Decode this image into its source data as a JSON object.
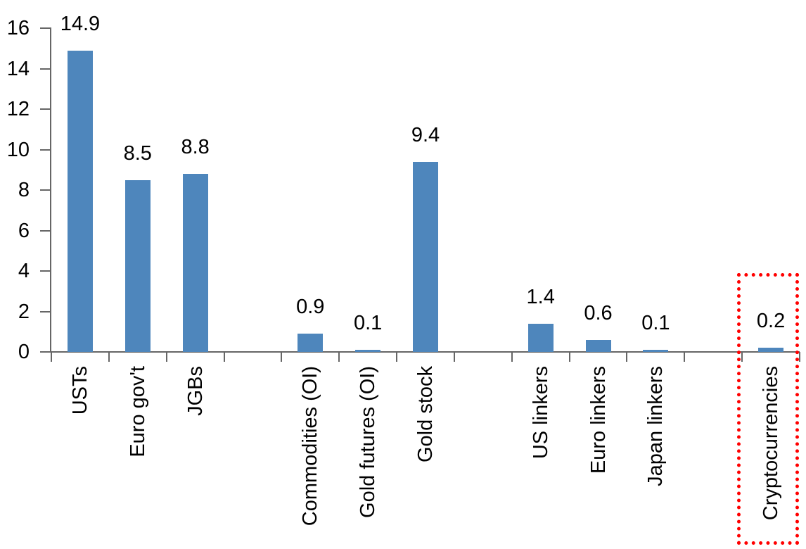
{
  "chart_data": {
    "type": "bar",
    "title": "",
    "xlabel": "",
    "ylabel": "",
    "categories": [
      "USTs",
      "Euro gov't",
      "JGBs",
      "",
      "Commodities (OI)",
      "Gold futures (OI)",
      "Gold stock",
      "",
      "US linkers",
      "Euro linkers",
      "Japan linkers",
      "",
      "Cryptocurrencies"
    ],
    "values": [
      14.9,
      8.5,
      8.8,
      null,
      0.9,
      0.1,
      9.4,
      null,
      1.4,
      0.6,
      0.1,
      null,
      0.2
    ],
    "value_labels": [
      "14.9",
      "8.5",
      "8.8",
      null,
      "0.9",
      "0.1",
      "9.4",
      null,
      "1.4",
      "0.6",
      "0.1",
      null,
      "0.2"
    ],
    "ylim": [
      0,
      16
    ],
    "yticks": [
      0,
      2,
      4,
      6,
      8,
      10,
      12,
      14,
      16
    ],
    "ytick_labels": [
      "0",
      "2",
      "4",
      "6",
      "8",
      "10",
      "12",
      "14",
      "16"
    ],
    "grid": false,
    "legend": "none",
    "bar_color": "#4E86BC",
    "axis_color": "#666666",
    "text_color": "#000000",
    "highlight": {
      "category": "Cryptocurrencies",
      "box_color": "#FF0000",
      "box_style": "dotted"
    }
  }
}
